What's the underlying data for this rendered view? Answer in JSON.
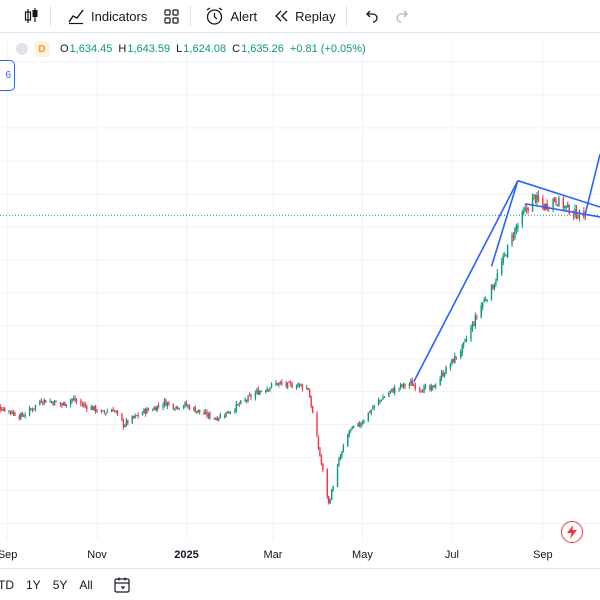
{
  "toolbar": {
    "indicators_label": "Indicators",
    "alert_label": "Alert",
    "replay_label": "Replay"
  },
  "legend": {
    "interval": "D",
    "open_key": "O",
    "open": "1,634.45",
    "high_key": "H",
    "high": "1,643.59",
    "low_key": "L",
    "low": "1,624.08",
    "close_key": "C",
    "close": "1,635.26",
    "change": "+0.81 (+0.05%)"
  },
  "side_tag": "6",
  "ranges": [
    "TD",
    "1Y",
    "5Y",
    "All"
  ],
  "colors": {
    "up": "#089981",
    "down": "#f23645",
    "drawing": "#2962ff",
    "grid": "#f0f3fa"
  },
  "icons": [
    "candles-icon",
    "indicators-icon",
    "templates-icon",
    "alert-icon",
    "replay-icon",
    "undo-icon",
    "redo-icon",
    "calendar-icon",
    "lightning-icon"
  ],
  "chart_data": {
    "type": "candlestick",
    "x_ticks": [
      "Sep",
      "Nov",
      "2025",
      "Mar",
      "May",
      "Jul",
      "Sep"
    ],
    "last_price": 1635.26,
    "y_range": [
      650,
      2100
    ],
    "series_close": [
      [
        "2024-08-20",
        1058
      ],
      [
        "2024-08-27",
        1052
      ],
      [
        "2024-09-03",
        1040
      ],
      [
        "2024-09-10",
        1025
      ],
      [
        "2024-09-17",
        1045
      ],
      [
        "2024-09-24",
        1075
      ],
      [
        "2024-10-01",
        1070
      ],
      [
        "2024-10-08",
        1060
      ],
      [
        "2024-10-15",
        1078
      ],
      [
        "2024-10-22",
        1060
      ],
      [
        "2024-10-29",
        1050
      ],
      [
        "2024-11-05",
        1035
      ],
      [
        "2024-11-12",
        1048
      ],
      [
        "2024-11-19",
        1000
      ],
      [
        "2024-11-26",
        1020
      ],
      [
        "2024-12-03",
        1040
      ],
      [
        "2024-12-10",
        1050
      ],
      [
        "2024-12-17",
        1068
      ],
      [
        "2024-12-24",
        1055
      ],
      [
        "2024-12-31",
        1060
      ],
      [
        "2025-01-07",
        1045
      ],
      [
        "2025-01-14",
        1030
      ],
      [
        "2025-01-21",
        1020
      ],
      [
        "2025-01-28",
        1035
      ],
      [
        "2025-02-04",
        1055
      ],
      [
        "2025-02-11",
        1075
      ],
      [
        "2025-02-18",
        1098
      ],
      [
        "2025-02-25",
        1112
      ],
      [
        "2025-03-04",
        1125
      ],
      [
        "2025-03-11",
        1118
      ],
      [
        "2025-03-18",
        1122
      ],
      [
        "2025-03-25",
        1110
      ],
      [
        "2025-04-01",
        930
      ],
      [
        "2025-04-08",
        760
      ],
      [
        "2025-04-15",
        890
      ],
      [
        "2025-04-22",
        980
      ],
      [
        "2025-04-29",
        1000
      ],
      [
        "2025-05-06",
        1040
      ],
      [
        "2025-05-13",
        1075
      ],
      [
        "2025-05-20",
        1100
      ],
      [
        "2025-05-27",
        1115
      ],
      [
        "2025-06-03",
        1125
      ],
      [
        "2025-06-10",
        1110
      ],
      [
        "2025-06-17",
        1105
      ],
      [
        "2025-06-24",
        1150
      ],
      [
        "2025-07-01",
        1190
      ],
      [
        "2025-07-08",
        1230
      ],
      [
        "2025-07-15",
        1300
      ],
      [
        "2025-07-22",
        1370
      ],
      [
        "2025-07-29",
        1420
      ],
      [
        "2025-08-05",
        1500
      ],
      [
        "2025-08-12",
        1580
      ],
      [
        "2025-08-19",
        1640
      ],
      [
        "2025-08-26",
        1690
      ],
      [
        "2025-09-02",
        1660
      ],
      [
        "2025-09-09",
        1685
      ],
      [
        "2025-09-16",
        1660
      ],
      [
        "2025-09-23",
        1640
      ],
      [
        "2025-09-30",
        1635
      ]
    ],
    "drawings": [
      {
        "type": "line",
        "points": [
          [
            "2025-06-05",
            1130
          ],
          [
            "2025-08-15",
            1740
          ]
        ]
      },
      {
        "type": "line",
        "points": [
          [
            "2025-07-28",
            1480
          ],
          [
            "2025-08-15",
            1740
          ]
        ]
      },
      {
        "type": "line",
        "points": [
          [
            "2025-08-20",
            1670
          ],
          [
            "2025-10-10",
            1630
          ]
        ]
      },
      {
        "type": "line",
        "points": [
          [
            "2025-08-15",
            1740
          ],
          [
            "2025-10-10",
            1660
          ]
        ]
      },
      {
        "type": "line",
        "points": [
          [
            "2025-09-30",
            1640
          ],
          [
            "2025-10-10",
            1820
          ]
        ]
      }
    ],
    "grid": true
  }
}
